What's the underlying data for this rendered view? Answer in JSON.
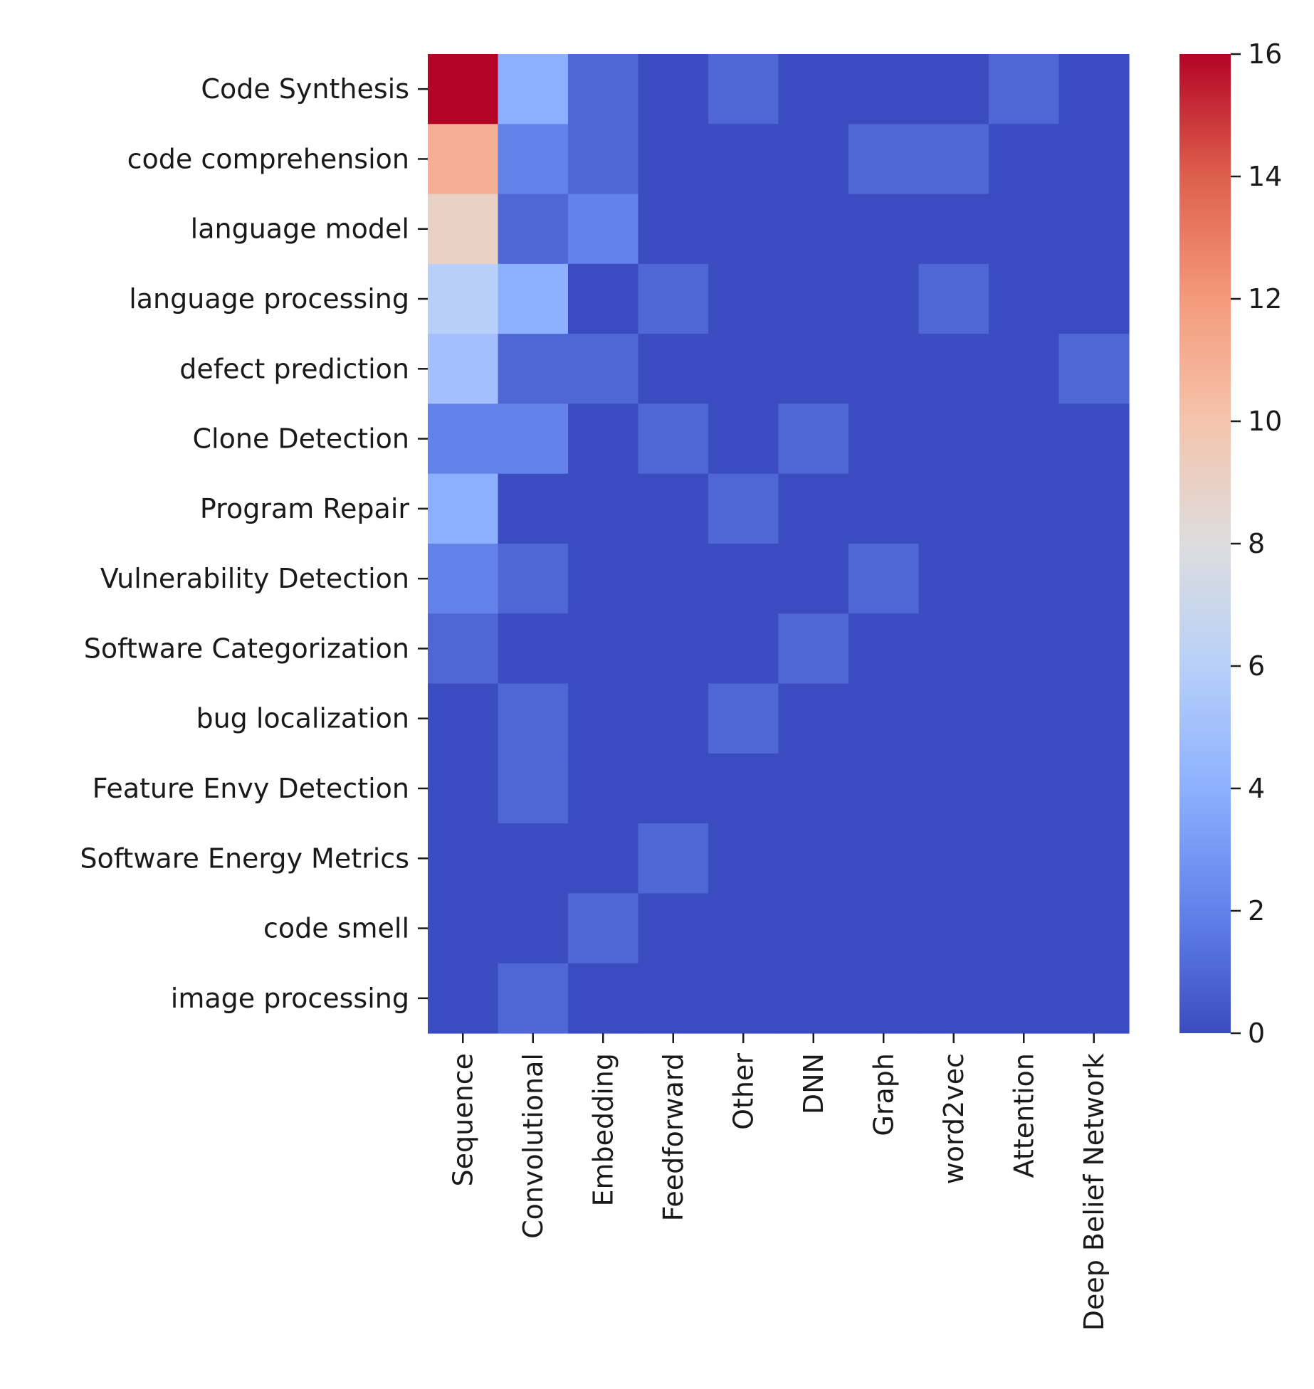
{
  "chart_data": {
    "type": "heatmap",
    "title": "",
    "xlabel": "",
    "ylabel": "",
    "colormap": "coolwarm",
    "vmin": 0,
    "vmax": 16,
    "rows": [
      "Code Synthesis",
      "code comprehension",
      "language model",
      "language processing",
      "defect prediction",
      "Clone Detection",
      "Program Repair",
      "Vulnerability Detection",
      "Software Categorization",
      "bug localization",
      "Feature Envy Detection",
      "Software Energy Metrics",
      "code smell",
      "image processing"
    ],
    "columns": [
      "Sequence",
      "Convolutional",
      "Embedding",
      "Feedforward",
      "Other",
      "DNN",
      "Graph",
      "word2vec",
      "Attention",
      "Deep Belief Network"
    ],
    "values": [
      [
        16,
        4,
        1,
        0,
        1,
        0,
        0,
        0,
        1,
        0
      ],
      [
        11,
        2,
        1,
        0,
        0,
        0,
        1,
        1,
        0,
        0
      ],
      [
        9,
        1,
        2,
        0,
        0,
        0,
        0,
        0,
        0,
        0
      ],
      [
        6,
        4,
        0,
        1,
        0,
        0,
        0,
        1,
        0,
        0
      ],
      [
        5,
        1,
        1,
        0,
        0,
        0,
        0,
        0,
        0,
        1
      ],
      [
        2,
        2,
        0,
        1,
        0,
        1,
        0,
        0,
        0,
        0
      ],
      [
        4,
        0,
        0,
        0,
        1,
        0,
        0,
        0,
        0,
        0
      ],
      [
        2,
        1,
        0,
        0,
        0,
        0,
        1,
        0,
        0,
        0
      ],
      [
        1,
        0,
        0,
        0,
        0,
        1,
        0,
        0,
        0,
        0
      ],
      [
        0,
        1,
        0,
        0,
        1,
        0,
        0,
        0,
        0,
        0
      ],
      [
        0,
        1,
        0,
        0,
        0,
        0,
        0,
        0,
        0,
        0
      ],
      [
        0,
        0,
        0,
        1,
        0,
        0,
        0,
        0,
        0,
        0
      ],
      [
        0,
        0,
        1,
        0,
        0,
        0,
        0,
        0,
        0,
        0
      ],
      [
        0,
        1,
        0,
        0,
        0,
        0,
        0,
        0,
        0,
        0
      ]
    ],
    "colorbar_ticks": [
      0,
      2,
      4,
      6,
      8,
      10,
      12,
      14,
      16
    ]
  }
}
